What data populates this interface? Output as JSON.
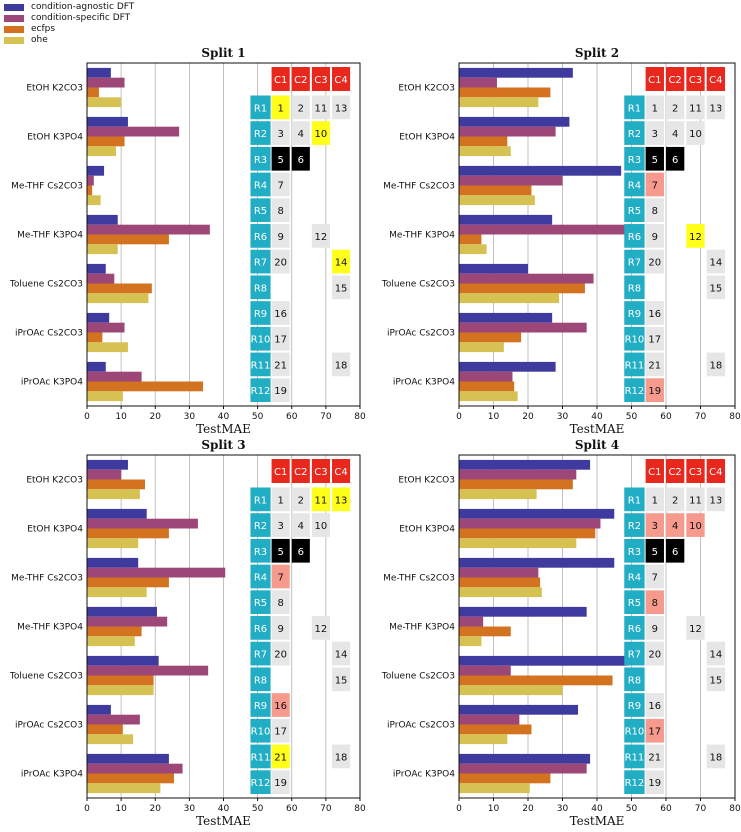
{
  "legend": {
    "series": [
      {
        "name": "condition-agnostic DFT",
        "color": "#3f3a9e"
      },
      {
        "name": "condition-specific DFT",
        "color": "#9c4778"
      },
      {
        "name": "ecfps",
        "color": "#d4731f"
      },
      {
        "name": "ohe",
        "color": "#d5c253"
      }
    ]
  },
  "colors": {
    "col_header": "#e8271d",
    "row_header": "#21adc4",
    "cell_default": "#e6e6e6",
    "cell_yellow": "#ffff1a",
    "cell_black": "#000000",
    "cell_salmon": "#f69a8e"
  },
  "chart_data": [
    {
      "type": "bar",
      "orientation": "horizontal",
      "title": "Split 1",
      "xlabel": "TestMAE",
      "xlim": [
        0,
        80
      ],
      "xticks": [
        0,
        10,
        20,
        30,
        40,
        50,
        60,
        70,
        80
      ],
      "categories": [
        "EtOH K2CO3",
        "EtOH K3PO4",
        "Me-THF Cs2CO3",
        "Me-THF K3PO4",
        "Toluene Cs2CO3",
        "iPrOAc Cs2CO3",
        "iPrOAc K3PO4"
      ],
      "series": [
        {
          "name": "condition-agnostic DFT",
          "values": [
            7,
            12,
            5,
            9,
            5.5,
            6.5,
            5.5
          ]
        },
        {
          "name": "condition-specific DFT",
          "values": [
            11,
            27,
            2,
            36,
            8,
            11,
            16
          ]
        },
        {
          "name": "ecfps",
          "values": [
            3.5,
            11,
            1.5,
            24,
            19,
            4.5,
            34
          ]
        },
        {
          "name": "ohe",
          "values": [
            10,
            8.5,
            4,
            9,
            18,
            12,
            10.5
          ]
        }
      ],
      "grid": {
        "col_labels": [
          "C1",
          "C2",
          "C3",
          "C4"
        ],
        "row_labels": [
          "R1",
          "R2",
          "R3",
          "R4",
          "R5",
          "R6",
          "R7",
          "R8",
          "R9",
          "R10",
          "R11",
          "R12"
        ],
        "rows": [
          [
            {
              "v": "1",
              "c": "yellow"
            },
            {
              "v": "2",
              "c": "default"
            },
            {
              "v": "11",
              "c": "default"
            },
            {
              "v": "13",
              "c": "default"
            }
          ],
          [
            {
              "v": "3",
              "c": "default"
            },
            {
              "v": "4",
              "c": "default"
            },
            {
              "v": "10",
              "c": "yellow"
            },
            null
          ],
          [
            {
              "v": "5",
              "c": "black"
            },
            {
              "v": "6",
              "c": "black"
            },
            null,
            null
          ],
          [
            {
              "v": "7",
              "c": "default"
            },
            null,
            null,
            null
          ],
          [
            {
              "v": "8",
              "c": "default"
            },
            null,
            null,
            null
          ],
          [
            {
              "v": "9",
              "c": "default"
            },
            null,
            {
              "v": "12",
              "c": "default"
            },
            null
          ],
          [
            {
              "v": "20",
              "c": "default"
            },
            null,
            null,
            {
              "v": "14",
              "c": "yellow"
            }
          ],
          [
            null,
            null,
            null,
            {
              "v": "15",
              "c": "default"
            }
          ],
          [
            {
              "v": "16",
              "c": "default"
            },
            null,
            null,
            null
          ],
          [
            {
              "v": "17",
              "c": "default"
            },
            null,
            null,
            null
          ],
          [
            {
              "v": "21",
              "c": "default"
            },
            null,
            null,
            {
              "v": "18",
              "c": "default"
            }
          ],
          [
            {
              "v": "19",
              "c": "default"
            },
            null,
            null,
            null
          ]
        ]
      }
    },
    {
      "type": "bar",
      "orientation": "horizontal",
      "title": "Split 2",
      "xlabel": "TestMAE",
      "xlim": [
        0,
        80
      ],
      "xticks": [
        0,
        10,
        20,
        30,
        40,
        50,
        60,
        70,
        80
      ],
      "categories": [
        "EtOH K2CO3",
        "EtOH K3PO4",
        "Me-THF Cs2CO3",
        "Me-THF K3PO4",
        "Toluene Cs2CO3",
        "iPrOAc Cs2CO3",
        "iPrOAc K3PO4"
      ],
      "series": [
        {
          "name": "condition-agnostic DFT",
          "values": [
            33,
            32,
            47,
            27,
            20,
            27,
            28
          ]
        },
        {
          "name": "condition-specific DFT",
          "values": [
            11,
            28,
            30,
            49,
            39,
            37,
            15.5
          ]
        },
        {
          "name": "ecfps",
          "values": [
            26.5,
            14,
            21,
            6.5,
            36.5,
            18,
            16
          ]
        },
        {
          "name": "ohe",
          "values": [
            23,
            15,
            22,
            8,
            29,
            13,
            17
          ]
        }
      ],
      "grid": {
        "col_labels": [
          "C1",
          "C2",
          "C3",
          "C4"
        ],
        "row_labels": [
          "R1",
          "R2",
          "R3",
          "R4",
          "R5",
          "R6",
          "R7",
          "R8",
          "R9",
          "R10",
          "R11",
          "R12"
        ],
        "rows": [
          [
            {
              "v": "1",
              "c": "default"
            },
            {
              "v": "2",
              "c": "default"
            },
            {
              "v": "11",
              "c": "default"
            },
            {
              "v": "13",
              "c": "default"
            }
          ],
          [
            {
              "v": "3",
              "c": "default"
            },
            {
              "v": "4",
              "c": "default"
            },
            {
              "v": "10",
              "c": "default"
            },
            null
          ],
          [
            {
              "v": "5",
              "c": "black"
            },
            {
              "v": "6",
              "c": "black"
            },
            null,
            null
          ],
          [
            {
              "v": "7",
              "c": "salmon"
            },
            null,
            null,
            null
          ],
          [
            {
              "v": "8",
              "c": "default"
            },
            null,
            null,
            null
          ],
          [
            {
              "v": "9",
              "c": "default"
            },
            null,
            {
              "v": "12",
              "c": "yellow"
            },
            null
          ],
          [
            {
              "v": "20",
              "c": "default"
            },
            null,
            null,
            {
              "v": "14",
              "c": "default"
            }
          ],
          [
            null,
            null,
            null,
            {
              "v": "15",
              "c": "default"
            }
          ],
          [
            {
              "v": "16",
              "c": "default"
            },
            null,
            null,
            null
          ],
          [
            {
              "v": "17",
              "c": "default"
            },
            null,
            null,
            null
          ],
          [
            {
              "v": "21",
              "c": "default"
            },
            null,
            null,
            {
              "v": "18",
              "c": "default"
            }
          ],
          [
            {
              "v": "19",
              "c": "salmon"
            },
            null,
            null,
            null
          ]
        ]
      }
    },
    {
      "type": "bar",
      "orientation": "horizontal",
      "title": "Split 3",
      "xlabel": "TestMAE",
      "xlim": [
        0,
        80
      ],
      "xticks": [
        0,
        10,
        20,
        30,
        40,
        50,
        60,
        70,
        80
      ],
      "categories": [
        "EtOH K2CO3",
        "EtOH K3PO4",
        "Me-THF Cs2CO3",
        "Me-THF K3PO4",
        "Toluene Cs2CO3",
        "iPrOAc Cs2CO3",
        "iPrOAc K3PO4"
      ],
      "series": [
        {
          "name": "condition-agnostic DFT",
          "values": [
            12,
            17.5,
            15,
            20.5,
            21,
            7,
            24
          ]
        },
        {
          "name": "condition-specific DFT",
          "values": [
            10,
            32.5,
            40.5,
            23.5,
            35.5,
            15.5,
            28
          ]
        },
        {
          "name": "ecfps",
          "values": [
            17,
            24,
            24,
            16,
            19.5,
            10.5,
            25.5
          ]
        },
        {
          "name": "ohe",
          "values": [
            15.5,
            15,
            17.5,
            14,
            19.5,
            13.5,
            21.5
          ]
        }
      ],
      "grid": {
        "col_labels": [
          "C1",
          "C2",
          "C3",
          "C4"
        ],
        "row_labels": [
          "R1",
          "R2",
          "R3",
          "R4",
          "R5",
          "R6",
          "R7",
          "R8",
          "R9",
          "R10",
          "R11",
          "R12"
        ],
        "rows": [
          [
            {
              "v": "1",
              "c": "default"
            },
            {
              "v": "2",
              "c": "default"
            },
            {
              "v": "11",
              "c": "yellow"
            },
            {
              "v": "13",
              "c": "yellow"
            }
          ],
          [
            {
              "v": "3",
              "c": "default"
            },
            {
              "v": "4",
              "c": "default"
            },
            {
              "v": "10",
              "c": "default"
            },
            null
          ],
          [
            {
              "v": "5",
              "c": "black"
            },
            {
              "v": "6",
              "c": "black"
            },
            null,
            null
          ],
          [
            {
              "v": "7",
              "c": "salmon"
            },
            null,
            null,
            null
          ],
          [
            {
              "v": "8",
              "c": "default"
            },
            null,
            null,
            null
          ],
          [
            {
              "v": "9",
              "c": "default"
            },
            null,
            {
              "v": "12",
              "c": "default"
            },
            null
          ],
          [
            {
              "v": "20",
              "c": "default"
            },
            null,
            null,
            {
              "v": "14",
              "c": "default"
            }
          ],
          [
            null,
            null,
            null,
            {
              "v": "15",
              "c": "default"
            }
          ],
          [
            {
              "v": "16",
              "c": "salmon"
            },
            null,
            null,
            null
          ],
          [
            {
              "v": "17",
              "c": "default"
            },
            null,
            null,
            null
          ],
          [
            {
              "v": "21",
              "c": "yellow"
            },
            null,
            null,
            {
              "v": "18",
              "c": "default"
            }
          ],
          [
            {
              "v": "19",
              "c": "default"
            },
            null,
            null,
            null
          ]
        ]
      }
    },
    {
      "type": "bar",
      "orientation": "horizontal",
      "title": "Split 4",
      "xlabel": "TestMAE",
      "xlim": [
        0,
        80
      ],
      "xticks": [
        0,
        10,
        20,
        30,
        40,
        50,
        60,
        70,
        80
      ],
      "categories": [
        "EtOH K2CO3",
        "EtOH K3PO4",
        "Me-THF Cs2CO3",
        "Me-THF K3PO4",
        "Toluene Cs2CO3",
        "iPrOAc Cs2CO3",
        "iPrOAc K3PO4"
      ],
      "series": [
        {
          "name": "condition-agnostic DFT",
          "values": [
            38,
            45,
            45,
            37,
            49,
            34.5,
            38
          ]
        },
        {
          "name": "condition-specific DFT",
          "values": [
            34,
            41,
            23,
            7,
            15,
            17.5,
            37
          ]
        },
        {
          "name": "ecfps",
          "values": [
            33,
            39.5,
            23.5,
            15,
            44.5,
            21,
            26.5
          ]
        },
        {
          "name": "ohe",
          "values": [
            22.5,
            34,
            24,
            6.5,
            30,
            14,
            20.5
          ]
        }
      ],
      "grid": {
        "col_labels": [
          "C1",
          "C2",
          "C3",
          "C4"
        ],
        "row_labels": [
          "R1",
          "R2",
          "R3",
          "R4",
          "R5",
          "R6",
          "R7",
          "R8",
          "R9",
          "R10",
          "R11",
          "R12"
        ],
        "rows": [
          [
            {
              "v": "1",
              "c": "default"
            },
            {
              "v": "2",
              "c": "default"
            },
            {
              "v": "11",
              "c": "default"
            },
            {
              "v": "13",
              "c": "default"
            }
          ],
          [
            {
              "v": "3",
              "c": "salmon"
            },
            {
              "v": "4",
              "c": "salmon"
            },
            {
              "v": "10",
              "c": "salmon"
            },
            null
          ],
          [
            {
              "v": "5",
              "c": "black"
            },
            {
              "v": "6",
              "c": "black"
            },
            null,
            null
          ],
          [
            {
              "v": "7",
              "c": "default"
            },
            null,
            null,
            null
          ],
          [
            {
              "v": "8",
              "c": "salmon"
            },
            null,
            null,
            null
          ],
          [
            {
              "v": "9",
              "c": "default"
            },
            null,
            {
              "v": "12",
              "c": "default"
            },
            null
          ],
          [
            {
              "v": "20",
              "c": "default"
            },
            null,
            null,
            {
              "v": "14",
              "c": "default"
            }
          ],
          [
            null,
            null,
            null,
            {
              "v": "15",
              "c": "default"
            }
          ],
          [
            {
              "v": "16",
              "c": "default"
            },
            null,
            null,
            null
          ],
          [
            {
              "v": "17",
              "c": "salmon"
            },
            null,
            null,
            null
          ],
          [
            {
              "v": "21",
              "c": "default"
            },
            null,
            null,
            {
              "v": "18",
              "c": "default"
            }
          ],
          [
            {
              "v": "19",
              "c": "default"
            },
            null,
            null,
            null
          ]
        ]
      }
    }
  ]
}
